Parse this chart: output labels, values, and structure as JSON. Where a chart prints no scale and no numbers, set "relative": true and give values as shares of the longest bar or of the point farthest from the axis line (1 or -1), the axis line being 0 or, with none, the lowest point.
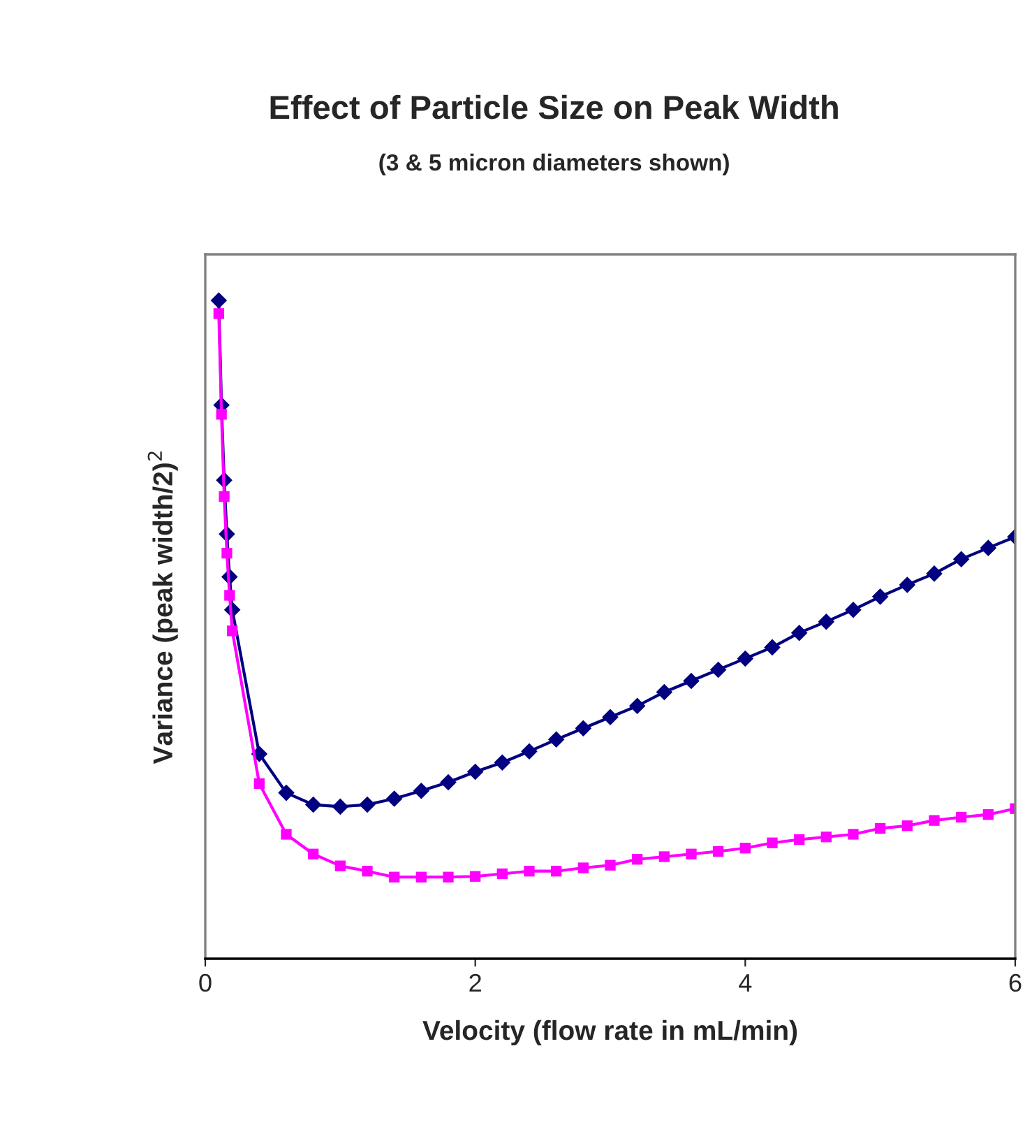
{
  "chart_data": {
    "type": "line",
    "title": "Effect of Particle Size on Peak Width",
    "subtitle": "(3 & 5 micron diameters shown)",
    "xlabel": "Velocity (flow rate in mL/min)",
    "ylabel": "Variance (peak width/2)$^{2}$",
    "relative": true,
    "x": [
      0.1,
      0.12,
      0.14,
      0.16,
      0.18,
      0.2,
      0.4,
      0.6,
      0.8,
      1.0,
      1.2,
      1.4,
      1.6,
      1.8,
      2.0,
      2.2,
      2.4,
      2.6,
      2.8,
      3.0,
      3.2,
      3.4,
      3.6,
      3.8,
      4.0,
      4.2,
      4.4,
      4.6,
      4.8,
      5.0,
      5.2,
      5.4,
      5.6,
      5.8,
      6.0
    ],
    "xlim": [
      0,
      6
    ],
    "xticks": [
      0,
      2,
      4,
      6
    ],
    "grid": false,
    "line_style": "solid",
    "series": [
      {
        "color": "#000080",
        "marker": "diamond",
        "values": [
          1,
          0.841,
          0.727,
          0.645,
          0.58,
          0.53,
          0.311,
          0.252,
          0.234,
          0.231,
          0.234,
          0.243,
          0.255,
          0.268,
          0.284,
          0.298,
          0.315,
          0.333,
          0.35,
          0.367,
          0.384,
          0.405,
          0.422,
          0.439,
          0.456,
          0.473,
          0.495,
          0.512,
          0.53,
          0.55,
          0.568,
          0.585,
          0.607,
          0.624,
          0.641
        ]
      },
      {
        "color": "#ff00ff",
        "marker": "square",
        "values": [
          0.98,
          0.827,
          0.702,
          0.616,
          0.552,
          0.498,
          0.266,
          0.189,
          0.159,
          0.141,
          0.133,
          0.124,
          0.124,
          0.124,
          0.125,
          0.129,
          0.133,
          0.133,
          0.138,
          0.142,
          0.151,
          0.155,
          0.159,
          0.163,
          0.168,
          0.176,
          0.181,
          0.185,
          0.189,
          0.198,
          0.202,
          0.21,
          0.215,
          0.219,
          0.228
        ]
      }
    ]
  }
}
